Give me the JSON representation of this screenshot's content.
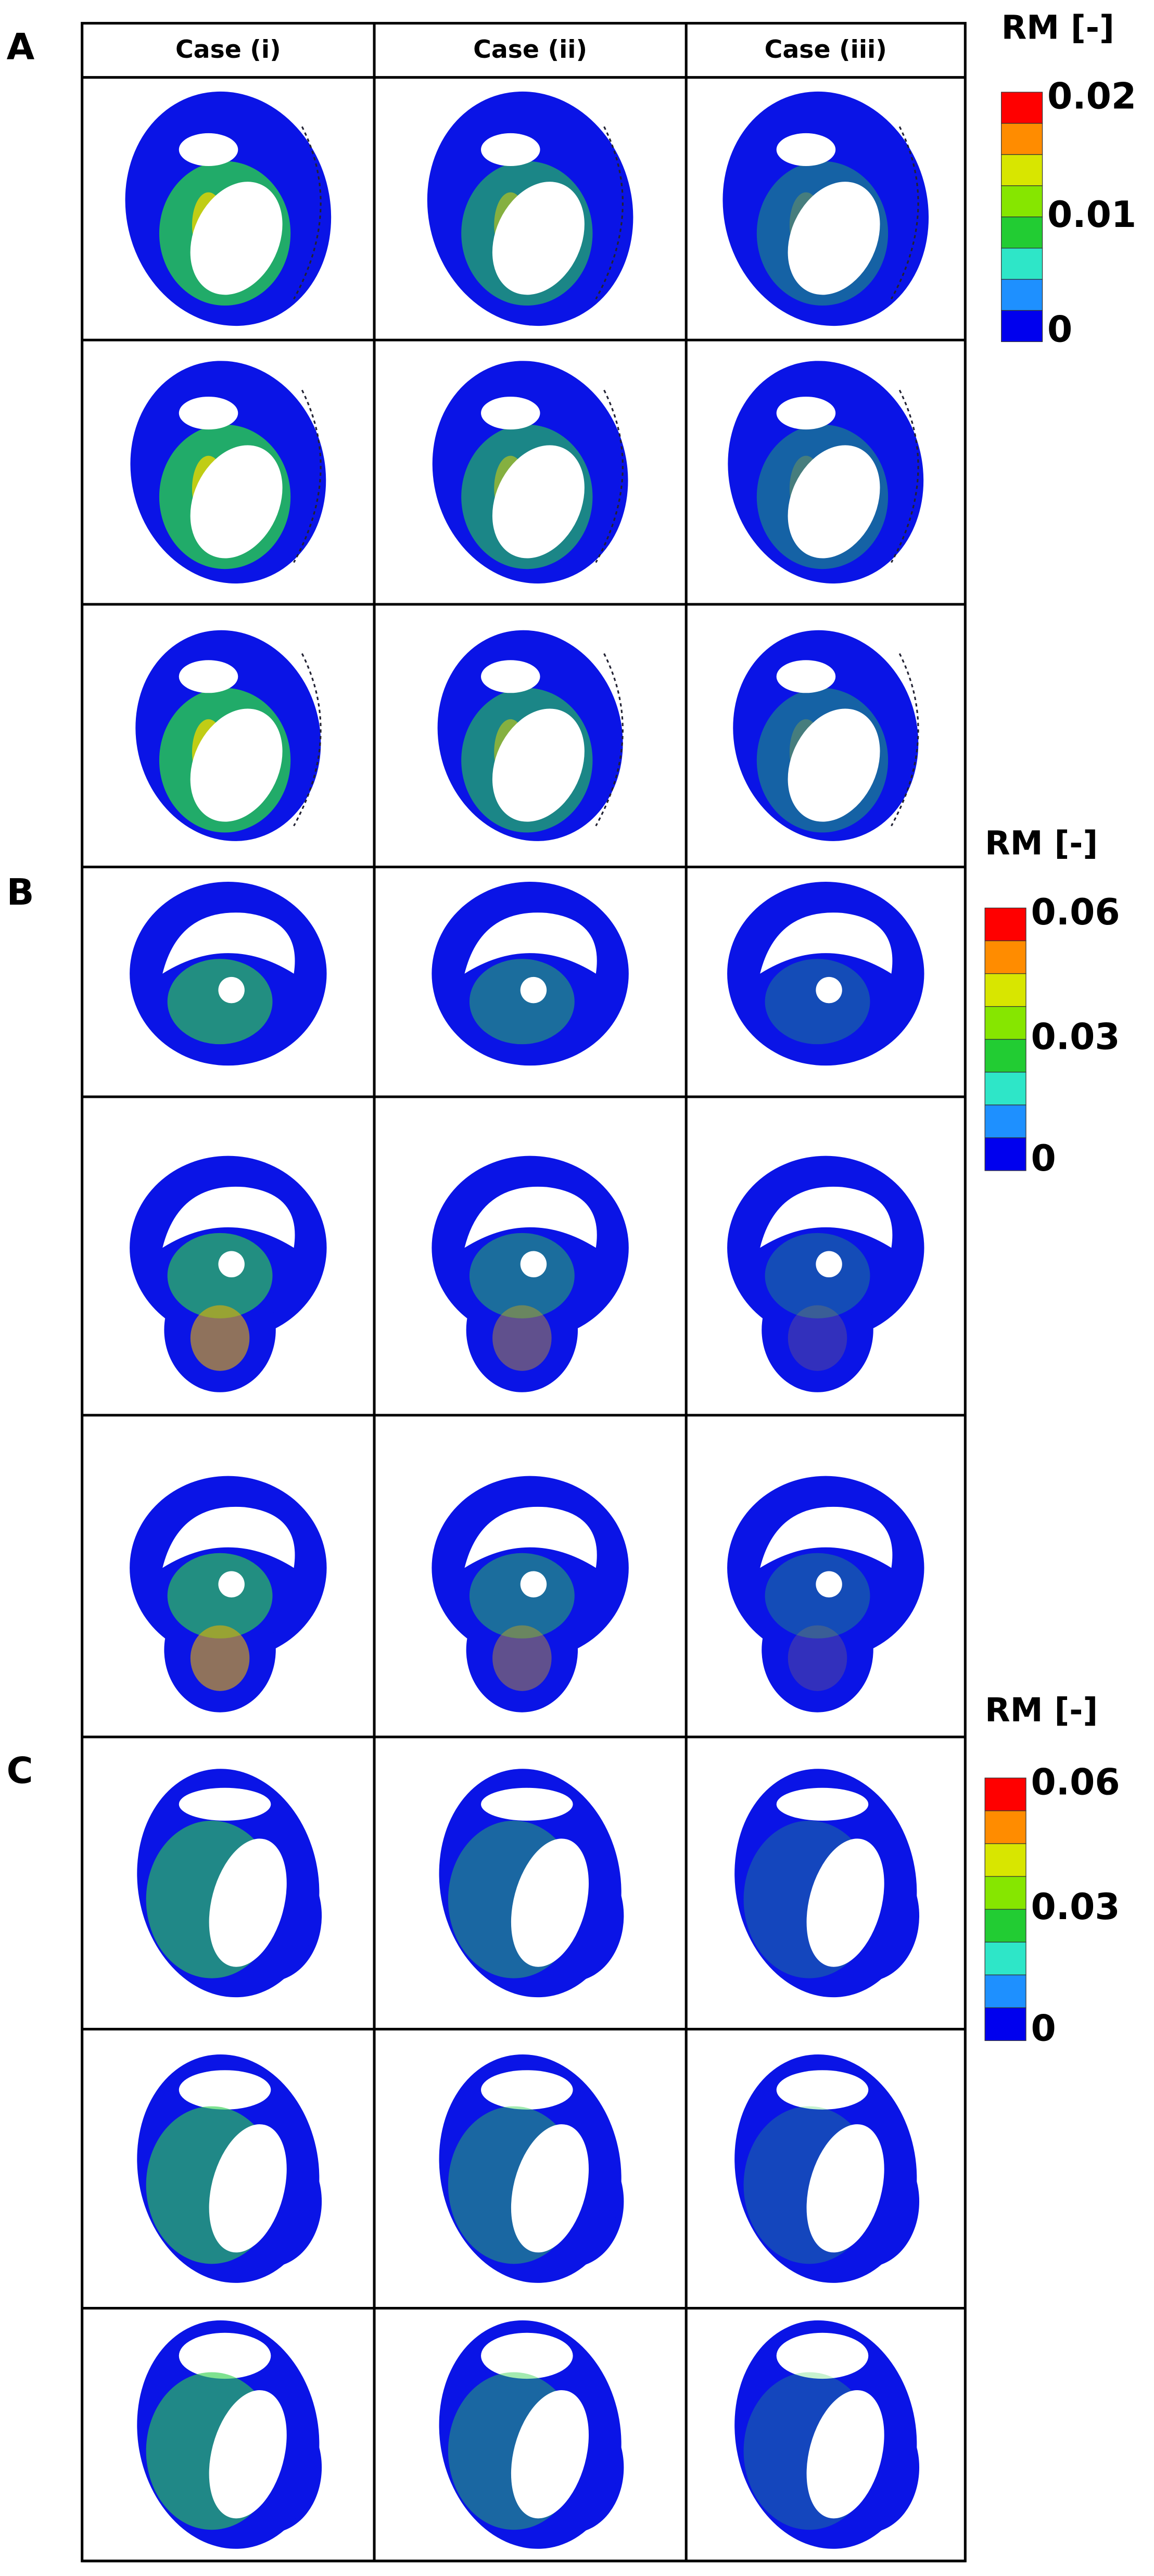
{
  "header": {
    "columns": [
      "Case (i)",
      "Case (ii)",
      "Case (iii)"
    ]
  },
  "panels": [
    {
      "label": "A",
      "colorbar": {
        "title": "RM [-]",
        "labels": [
          "0.02",
          "0.01",
          "0"
        ]
      }
    },
    {
      "label": "B",
      "colorbar": {
        "title": "RM [-]",
        "labels": [
          "0.06",
          "0.03",
          "0"
        ]
      }
    },
    {
      "label": "C",
      "colorbar": {
        "title": "RM [-]",
        "labels": [
          "0.06",
          "0.03",
          "0"
        ]
      }
    }
  ]
}
